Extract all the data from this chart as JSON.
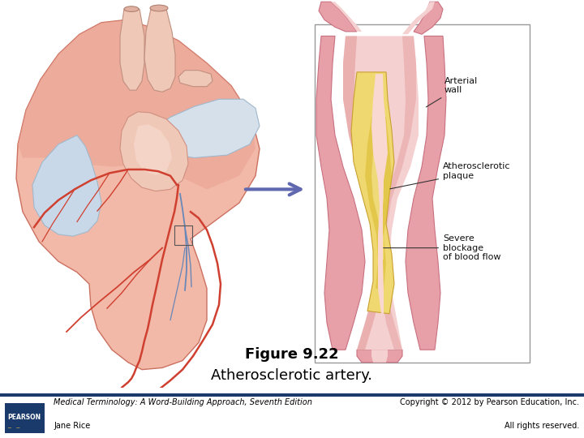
{
  "title_line1": "Figure 9.22",
  "title_line2": "Atherosclerotic artery.",
  "title_fontsize": 13,
  "footer_left_line1": "Medical Terminology: A Word-Building Approach, Seventh Edition",
  "footer_left_line2": "Jane Rice",
  "footer_right_line1": "Copyright © 2012 by Pearson Education, Inc.",
  "footer_right_line2": "All rights reserved.",
  "footer_fontsize": 7,
  "footer_bar_color": "#1a3a6b",
  "pearson_box_color": "#1a3a6b",
  "pearson_text": "PEARSON",
  "bg_color": "#ffffff",
  "label_arterial_wall": "Arterial\nwall",
  "label_atherosclerotic": "Atherosclerotic\nplaque",
  "label_severe_blockage": "Severe\nblockage\nof blood flow",
  "arrow_color": "#6068b0",
  "label_fontsize": 8,
  "heart_main": "#f2b8a8",
  "heart_dark": "#e8907a",
  "heart_red_accent": "#d04030",
  "atrium_blue": "#c8d8e8",
  "artery_wall_color": "#e8a0a8",
  "artery_dark": "#c87080",
  "plaque_color": "#f0d870",
  "plaque_dark": "#d8b840",
  "lumen_color": "#fde8e0",
  "box_outline": "#999999"
}
